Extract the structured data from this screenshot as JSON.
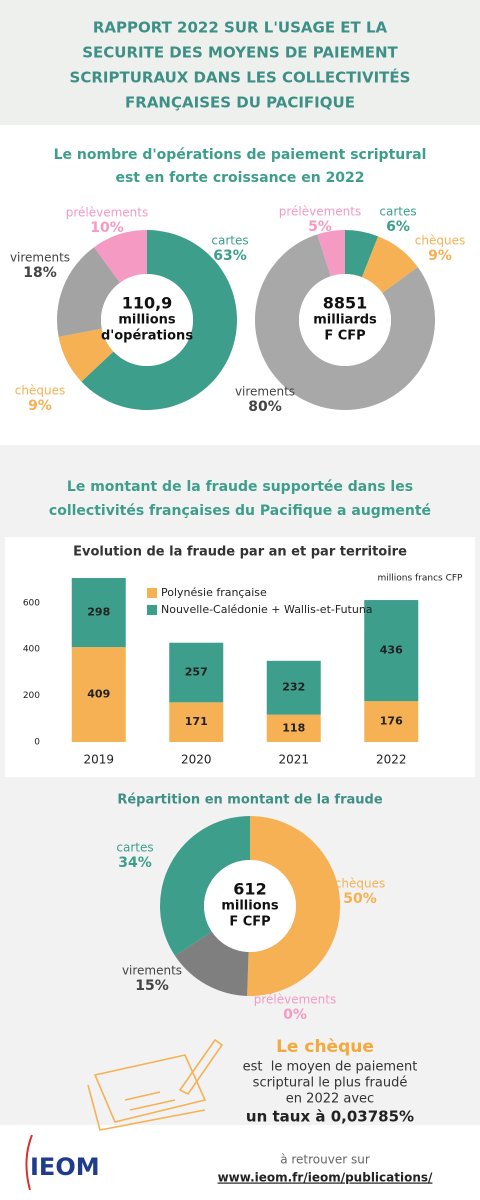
{
  "header": {
    "title": [
      "RAPPORT 2022 SUR L'USAGE ET LA",
      "SECURITE DES MOYENS DE PAIEMENT",
      "SCRIPTURAUX DANS LES COLLECTIVITÉS",
      "FRANÇAISES DU PACIFIQUE"
    ]
  },
  "section_1": {
    "heading": [
      "Le nombre d'opérations de paiement scriptural",
      "est en forte croissance en 2022"
    ]
  },
  "section_2": {
    "heading": [
      "Le montant de la fraude supportée dans les",
      "collectivités françaises du Pacifique a augmenté"
    ]
  },
  "chart_data": [
    {
      "type": "donut",
      "center_label": [
        "110,9",
        "millions",
        "d'opérations"
      ],
      "categories": [
        "cartes",
        "chèques",
        "virements",
        "prélèvements"
      ],
      "values": [
        63,
        9,
        18,
        10
      ],
      "value_labels": [
        "63%",
        "9%",
        "18%",
        "10%"
      ],
      "colors": [
        "#3e9e8c",
        "#f5b154",
        "#a3a3a3",
        "#f59ac2"
      ]
    },
    {
      "type": "donut",
      "center_label": [
        "8851",
        "milliards",
        "F CFP"
      ],
      "categories": [
        "cartes",
        "chèques",
        "virements",
        "prélèvements"
      ],
      "values": [
        6,
        9,
        80,
        5
      ],
      "value_labels": [
        "6%",
        "9%",
        "80%",
        "5%"
      ],
      "colors": [
        "#3e9e8c",
        "#f5b154",
        "#a8a8a8",
        "#f59ac2"
      ]
    },
    {
      "type": "stacked-bar",
      "title": "Evolution de la fraude par an et par territoire",
      "annotation": "millions francs CFP",
      "categories": [
        "2019",
        "2020",
        "2021",
        "2022"
      ],
      "series": [
        {
          "name": "Polynésie française",
          "color": "#f5b154",
          "values": [
            409,
            171,
            118,
            176
          ]
        },
        {
          "name": "Nouvelle-Calédonie + Wallis-et-Futuna",
          "color": "#3e9e8c",
          "values": [
            298,
            257,
            232,
            436
          ]
        }
      ],
      "ylim": [
        0,
        720
      ],
      "yticks": [
        0,
        200,
        400,
        600
      ],
      "grid": false
    },
    {
      "type": "donut",
      "title": "Répartition en montant de la fraude",
      "center_label": [
        "612",
        "millions",
        "F CFP"
      ],
      "categories": [
        "chèques",
        "prélèvements",
        "virements",
        "cartes"
      ],
      "values": [
        50,
        0,
        15,
        34
      ],
      "value_labels": [
        "50%",
        "0%",
        "15%",
        "34%"
      ],
      "colors": [
        "#f5b154",
        "#f59ac2",
        "#7f7f7f",
        "#3e9e8c"
      ]
    }
  ],
  "callout": {
    "title": "Le chèque",
    "lines": [
      "est  le moyen de paiement",
      "scriptural le plus fraudé",
      "en 2022 avec"
    ],
    "highlight": "un taux à 0,03785%"
  },
  "footer": {
    "logo": "IEOM",
    "caption": "à retrouver sur",
    "link": "www.ieom.fr/ieom/publications/"
  }
}
